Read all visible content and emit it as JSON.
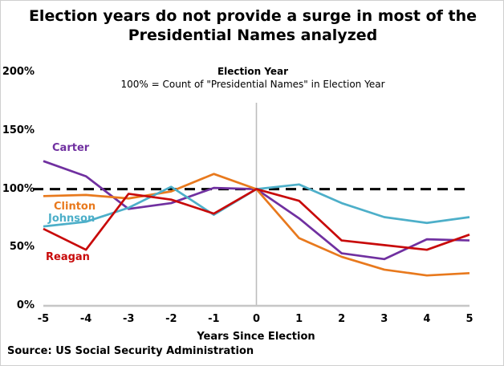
{
  "title": {
    "line1": "Election years do not provide a surge in most of the",
    "line2": "Presidential Names analyzed"
  },
  "subtitle": {
    "heading": "Election Year",
    "note": "100% = Count of \"Presidential Names\" in Election Year"
  },
  "source": "Source: US Social Security Administration",
  "chart_data": {
    "type": "line",
    "x": [
      -5,
      -4,
      -3,
      -2,
      -1,
      0,
      1,
      2,
      3,
      4,
      5
    ],
    "x_tick_labels": [
      "-5",
      "-4",
      "-3",
      "-2",
      "-1",
      "0",
      "1",
      "2",
      "3",
      "4",
      "5"
    ],
    "xlabel": "Years Since Election",
    "y_ticks": [
      {
        "value": 0,
        "label": "0%"
      },
      {
        "value": 50,
        "label": "50%"
      },
      {
        "value": 100,
        "label": "100%"
      },
      {
        "value": 150,
        "label": "150%"
      },
      {
        "value": 200,
        "label": "200%"
      }
    ],
    "ylim": [
      0,
      200
    ],
    "grid": false,
    "legend": "inline-labels",
    "reference_line": {
      "value": 100,
      "style": "dashed",
      "color": "#000000"
    },
    "election_year_line": {
      "x": 0,
      "color": "#bdbdbd"
    },
    "axis_color": "#c6c6c6",
    "series": [
      {
        "name": "Carter",
        "color": "#7030A0",
        "values": [
          124,
          111,
          83,
          88,
          101,
          100,
          75,
          45,
          40,
          57,
          56
        ]
      },
      {
        "name": "Clinton",
        "color": "#E8791D",
        "values": [
          94,
          95,
          92,
          98,
          113,
          100,
          58,
          42,
          31,
          26,
          28
        ]
      },
      {
        "name": "Johnson",
        "color": "#4DAFC9",
        "values": [
          68,
          72,
          84,
          102,
          78,
          100,
          104,
          88,
          76,
          71,
          76
        ]
      },
      {
        "name": "Reagan",
        "color": "#C80A0A",
        "values": [
          66,
          48,
          96,
          91,
          79,
          100,
          90,
          56,
          52,
          48,
          61
        ]
      }
    ]
  }
}
